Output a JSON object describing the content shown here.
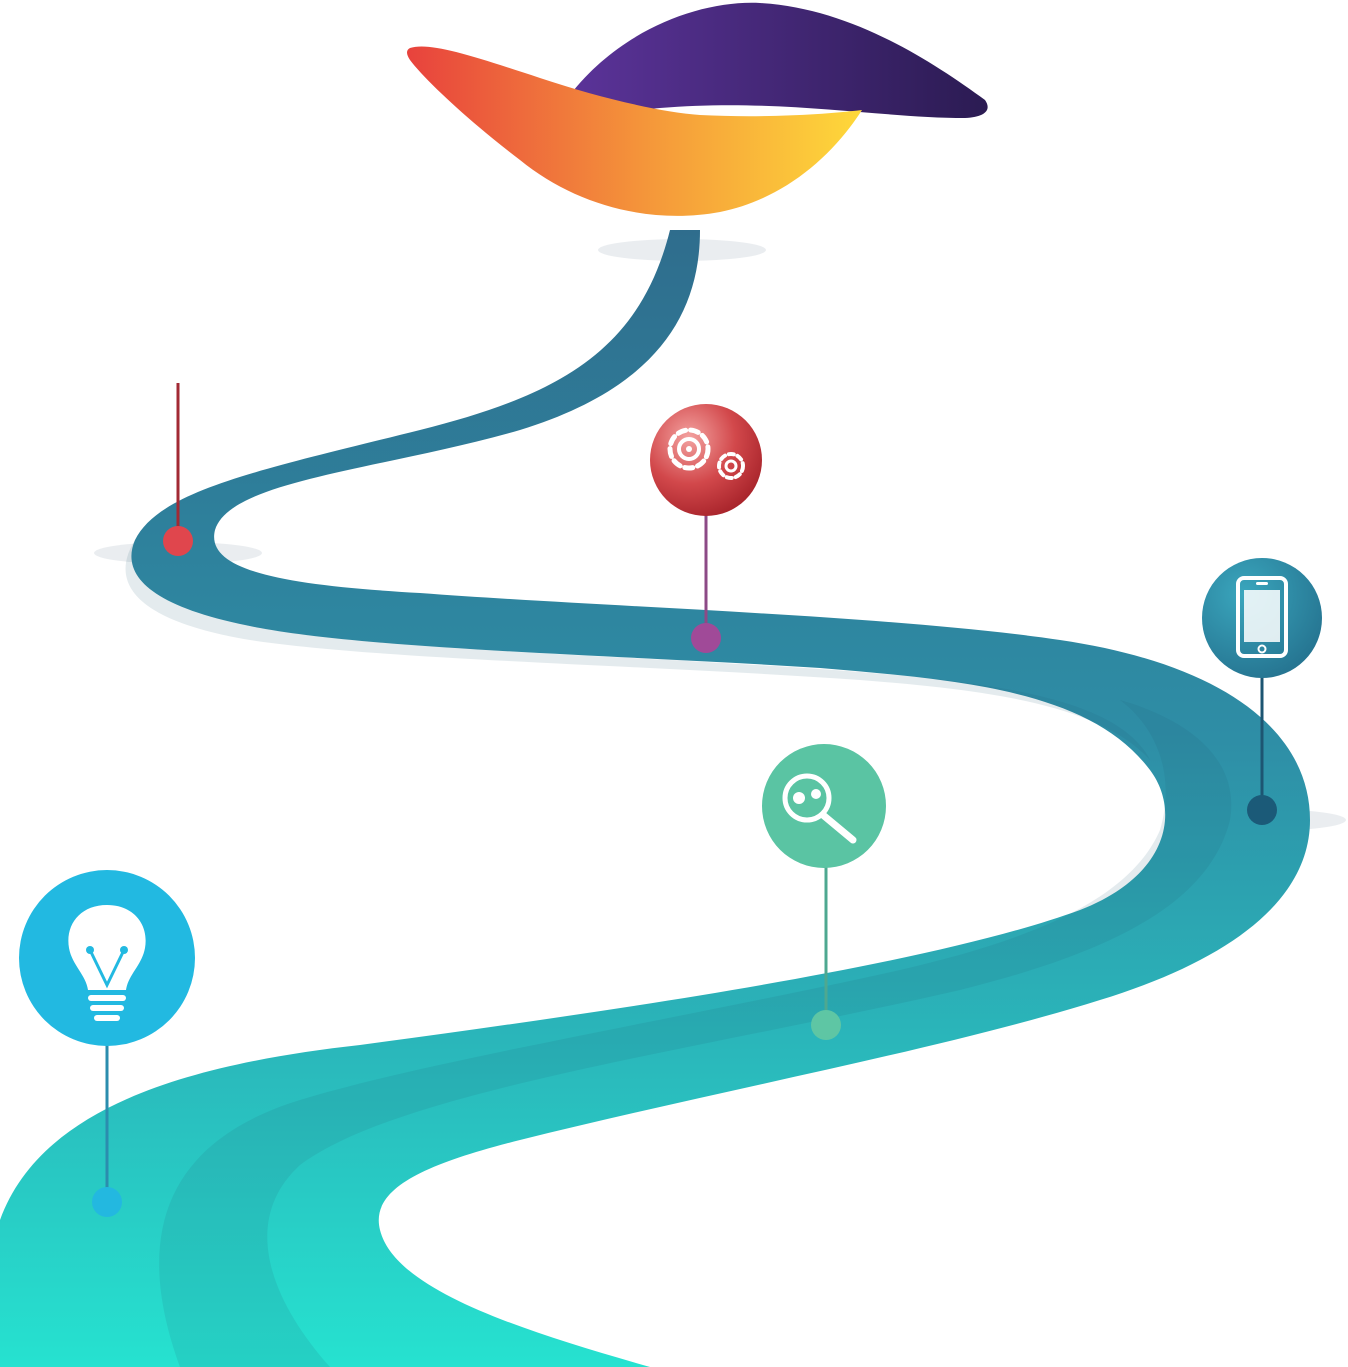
{
  "illustration": {
    "kind": "winding-road-roadmap",
    "logo": {
      "shape": "two-tone-leaf-wing",
      "top_gradient": [
        "#5a3196",
        "#2e1d57"
      ],
      "bottom_gradient": [
        "#e8483c",
        "#f4873a",
        "#fdd73a"
      ]
    },
    "road": {
      "gradient_top": "#2e6f8e",
      "gradient_bottom": "#26e3d0",
      "shade": "#1f5a73"
    },
    "milestones": [
      {
        "id": "start",
        "icon": "lightbulb-icon",
        "color": "#23b8e0",
        "label": ""
      },
      {
        "id": "research",
        "icon": "magnifier-icon",
        "color": "#5cc2a3",
        "label": ""
      },
      {
        "id": "mobile",
        "icon": "smartphone-icon",
        "color": "#2e8fa8",
        "label": ""
      },
      {
        "id": "build",
        "icon": "gears-icon",
        "color": "#c3393e",
        "label": ""
      },
      {
        "id": "launch",
        "icon": "",
        "color": "#c62f38",
        "label": ""
      }
    ]
  }
}
